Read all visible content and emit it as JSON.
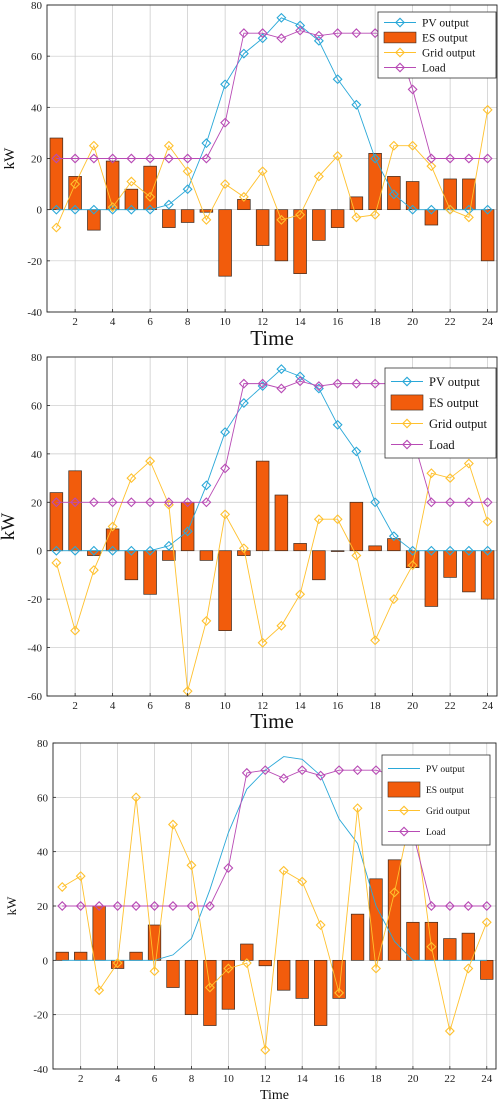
{
  "chart_data": [
    {
      "type": "bar",
      "xlabel": "Time",
      "ylabel": "kW",
      "xlim": [
        0.5,
        24.5
      ],
      "ylim": [
        -40,
        80
      ],
      "yticks": [
        -40,
        -20,
        0,
        20,
        40,
        60,
        80
      ],
      "xticks": [
        2,
        4,
        6,
        8,
        10,
        12,
        14,
        16,
        18,
        20,
        22,
        24
      ],
      "grid": true,
      "legend_position": "top-right",
      "x": [
        1,
        2,
        3,
        4,
        5,
        6,
        7,
        8,
        9,
        10,
        11,
        12,
        13,
        14,
        15,
        16,
        17,
        18,
        19,
        20,
        21,
        22,
        23,
        24
      ],
      "series": [
        {
          "name": "PV output",
          "kind": "line",
          "color": "#2aa8d8",
          "marker": "diamond",
          "values": [
            0,
            0,
            0,
            0,
            0,
            0,
            2,
            8,
            26,
            49,
            61,
            67,
            75,
            72,
            66,
            51,
            41,
            20,
            6,
            0,
            0,
            0,
            0,
            0
          ]
        },
        {
          "name": "ES output",
          "kind": "bar",
          "color": "#f25c0c",
          "values": [
            28,
            13,
            -8,
            19,
            8,
            17,
            -7,
            -5,
            -1,
            -26,
            4,
            -14,
            -20,
            -25,
            -12,
            -7,
            5,
            22,
            13,
            11,
            -6,
            12,
            12,
            -20
          ]
        },
        {
          "name": "Grid output",
          "kind": "line",
          "color": "#ffc12e",
          "marker": "diamond",
          "values": [
            -7,
            10,
            25,
            1,
            11,
            5,
            25,
            15,
            -4,
            10,
            5,
            15,
            -4,
            -2,
            13,
            21,
            -3,
            -2,
            25,
            25,
            17,
            0,
            -3,
            39
          ]
        },
        {
          "name": "Load",
          "kind": "line",
          "color": "#b84bb5",
          "marker": "diamond",
          "values": [
            20,
            20,
            20,
            20,
            20,
            20,
            20,
            20,
            20,
            34,
            69,
            69,
            67,
            70,
            68,
            69,
            69,
            69,
            69,
            47,
            20,
            20,
            20,
            20
          ]
        }
      ]
    },
    {
      "type": "bar",
      "xlabel": "Time",
      "ylabel": "kW",
      "xlim": [
        0.5,
        24.5
      ],
      "ylim": [
        -60,
        80
      ],
      "yticks": [
        -60,
        -40,
        -20,
        0,
        20,
        40,
        60,
        80
      ],
      "xticks": [
        2,
        4,
        6,
        8,
        10,
        12,
        14,
        16,
        18,
        20,
        22,
        24
      ],
      "grid": true,
      "legend_position": "top-right",
      "x": [
        1,
        2,
        3,
        4,
        5,
        6,
        7,
        8,
        9,
        10,
        11,
        12,
        13,
        14,
        15,
        16,
        17,
        18,
        19,
        20,
        21,
        22,
        23,
        24
      ],
      "series": [
        {
          "name": "PV output",
          "kind": "line",
          "color": "#2aa8d8",
          "marker": "diamond",
          "values": [
            0,
            0,
            0,
            0,
            0,
            0,
            2,
            8,
            27,
            49,
            61,
            68,
            75,
            72,
            67,
            52,
            41,
            20,
            6,
            0,
            0,
            0,
            0,
            0
          ]
        },
        {
          "name": "ES output",
          "kind": "bar",
          "color": "#f25c0c",
          "values": [
            24,
            33,
            -2,
            9,
            -12,
            -18,
            -4,
            20,
            -4,
            -33,
            -2,
            37,
            23,
            3,
            -12,
            0,
            20,
            2,
            5,
            -7,
            -23,
            -11,
            -17,
            -20
          ]
        },
        {
          "name": "Grid output",
          "kind": "line",
          "color": "#ffc12e",
          "marker": "diamond",
          "values": [
            -5,
            -33,
            -8,
            10,
            30,
            37,
            19,
            -58,
            -29,
            15,
            1,
            -38,
            -31,
            -18,
            13,
            13,
            -2,
            -37,
            -20,
            -6,
            32,
            30,
            36,
            12
          ]
        },
        {
          "name": "Load",
          "kind": "line",
          "color": "#b84bb5",
          "marker": "diamond",
          "values": [
            20,
            20,
            20,
            20,
            20,
            20,
            20,
            20,
            20,
            34,
            69,
            69,
            67,
            70,
            68,
            69,
            69,
            69,
            69,
            47,
            20,
            20,
            20,
            20
          ]
        }
      ]
    },
    {
      "type": "bar",
      "xlabel": "Time",
      "ylabel": "kW",
      "xlim": [
        0.5,
        24.5
      ],
      "ylim": [
        -40,
        80
      ],
      "yticks": [
        -40,
        -20,
        0,
        20,
        40,
        60,
        80
      ],
      "xticks": [
        2,
        4,
        6,
        8,
        10,
        12,
        14,
        16,
        18,
        20,
        22,
        24
      ],
      "grid": true,
      "legend_position": "top-right",
      "x": [
        1,
        2,
        3,
        4,
        5,
        6,
        7,
        8,
        9,
        10,
        11,
        12,
        13,
        14,
        15,
        16,
        17,
        18,
        19,
        20,
        21,
        22,
        23,
        24
      ],
      "series": [
        {
          "name": "PV output",
          "kind": "line",
          "color": "#2aa8d8",
          "marker": "none",
          "values": [
            0,
            0,
            0,
            0,
            0,
            0,
            2,
            8,
            26,
            47,
            63,
            70,
            75,
            74,
            68,
            52,
            43,
            20,
            7,
            0,
            0,
            0,
            0,
            0
          ]
        },
        {
          "name": "ES output",
          "kind": "bar",
          "color": "#f25c0c",
          "values": [
            3,
            3,
            20,
            -3,
            3,
            13,
            -10,
            -20,
            -24,
            -18,
            6,
            -2,
            -11,
            -14,
            -24,
            -14,
            17,
            30,
            37,
            14,
            14,
            8,
            10,
            -7
          ]
        },
        {
          "name": "Grid output",
          "kind": "line",
          "color": "#ffc12e",
          "marker": "diamond",
          "values": [
            27,
            31,
            -11,
            -1,
            60,
            -4,
            50,
            35,
            -10,
            -3,
            -1,
            -33,
            33,
            29,
            13,
            -12,
            56,
            -3,
            25,
            57,
            5,
            -26,
            -3,
            14
          ]
        },
        {
          "name": "Load",
          "kind": "line",
          "color": "#b84bb5",
          "marker": "diamond",
          "values": [
            20,
            20,
            20,
            20,
            20,
            20,
            20,
            20,
            20,
            34,
            69,
            70,
            67,
            70,
            68,
            70,
            70,
            70,
            68,
            47,
            20,
            20,
            20,
            20
          ]
        }
      ]
    }
  ]
}
